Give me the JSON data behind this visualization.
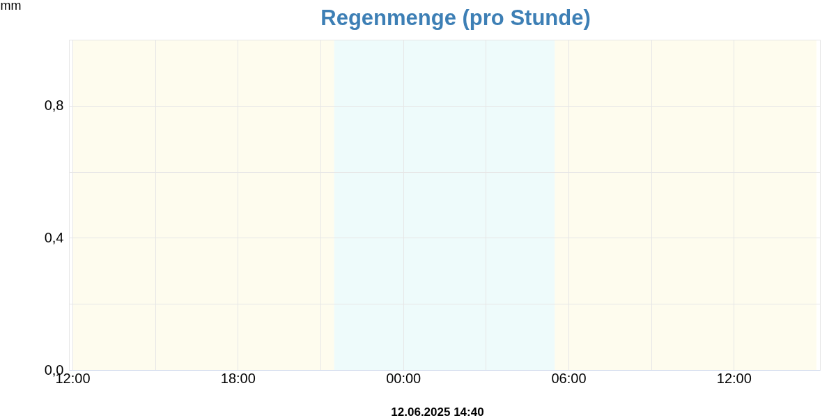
{
  "chart_data": {
    "type": "bar",
    "title": "Regenmenge (pro Stunde)",
    "ylabel": "mm",
    "annotations": [
      "12.06.2025 14:40"
    ],
    "x": [
      "2025-06-11T13:00",
      "2025-06-11T14:00",
      "2025-06-11T15:00",
      "2025-06-11T16:00",
      "2025-06-11T17:00",
      "2025-06-11T18:00",
      "2025-06-11T19:00",
      "2025-06-11T20:00",
      "2025-06-11T21:00",
      "2025-06-11T22:00",
      "2025-06-11T23:00",
      "2025-06-12T00:00",
      "2025-06-12T01:00",
      "2025-06-12T02:00",
      "2025-06-12T03:00",
      "2025-06-12T04:00",
      "2025-06-12T05:00",
      "2025-06-12T06:00",
      "2025-06-12T07:00",
      "2025-06-12T08:00",
      "2025-06-12T09:00",
      "2025-06-12T10:00",
      "2025-06-12T11:00",
      "2025-06-12T12:00",
      "2025-06-12T13:00",
      "2025-06-12T14:00"
    ],
    "values": [
      0,
      0,
      0,
      0,
      0,
      0,
      0,
      0,
      0,
      0,
      0,
      0,
      0,
      0,
      0,
      0,
      0,
      0,
      0,
      0,
      0,
      0,
      0,
      0,
      0,
      0
    ],
    "xlim": [
      "2025-06-11T12:00",
      "2025-06-12T15:00"
    ],
    "xticks": [
      {
        "value": "2025-06-11T12:00",
        "label": "12:00"
      },
      {
        "value": "2025-06-11T15:00",
        "label": null
      },
      {
        "value": "2025-06-11T18:00",
        "label": "18:00"
      },
      {
        "value": "2025-06-11T21:00",
        "label": null
      },
      {
        "value": "2025-06-12T00:00",
        "label": "00:00"
      },
      {
        "value": "2025-06-12T03:00",
        "label": null
      },
      {
        "value": "2025-06-12T06:00",
        "label": "06:00"
      },
      {
        "value": "2025-06-12T09:00",
        "label": null
      },
      {
        "value": "2025-06-12T12:00",
        "label": "12:00"
      }
    ],
    "ylim": [
      0,
      1
    ],
    "yticks": [
      {
        "value": 0,
        "label": "0,0"
      },
      {
        "value": 0.2,
        "label": null
      },
      {
        "value": 0.4,
        "label": "0,4"
      },
      {
        "value": 0.6,
        "label": null
      },
      {
        "value": 0.8,
        "label": "0,8"
      },
      {
        "value": 1,
        "label": null
      }
    ],
    "grid": true,
    "bands": [
      {
        "axis": "x",
        "from": "2025-06-11T12:00",
        "to": "2025-06-11T21:30",
        "color": "#fefcee"
      },
      {
        "axis": "x",
        "from": "2025-06-11T21:30",
        "to": "2025-06-12T05:30",
        "color": "#eefbfb"
      },
      {
        "axis": "x",
        "from": "2025-06-12T05:30",
        "to": "2025-06-12T15:00",
        "color": "#fefcee"
      }
    ]
  }
}
